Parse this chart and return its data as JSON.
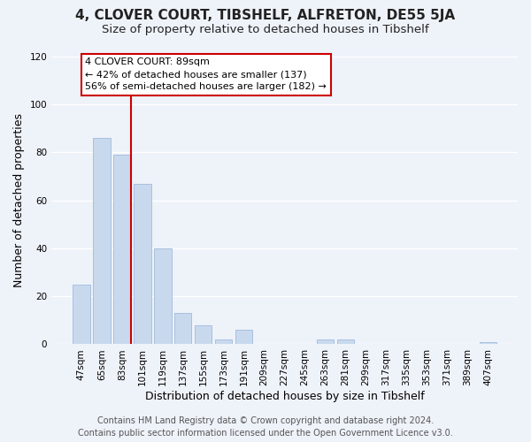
{
  "title": "4, CLOVER COURT, TIBSHELF, ALFRETON, DE55 5JA",
  "subtitle": "Size of property relative to detached houses in Tibshelf",
  "xlabel": "Distribution of detached houses by size in Tibshelf",
  "ylabel": "Number of detached properties",
  "bar_color": "#c8d9ee",
  "bar_edge_color": "#a8c0de",
  "categories": [
    "47sqm",
    "65sqm",
    "83sqm",
    "101sqm",
    "119sqm",
    "137sqm",
    "155sqm",
    "173sqm",
    "191sqm",
    "209sqm",
    "227sqm",
    "245sqm",
    "263sqm",
    "281sqm",
    "299sqm",
    "317sqm",
    "335sqm",
    "353sqm",
    "371sqm",
    "389sqm",
    "407sqm"
  ],
  "values": [
    25,
    86,
    79,
    67,
    40,
    13,
    8,
    2,
    6,
    0,
    0,
    0,
    2,
    2,
    0,
    0,
    0,
    0,
    0,
    0,
    1
  ],
  "ylim": [
    0,
    120
  ],
  "yticks": [
    0,
    20,
    40,
    60,
    80,
    100,
    120
  ],
  "vline_x_idx": 2,
  "vline_color": "#cc0000",
  "annotation_title": "4 CLOVER COURT: 89sqm",
  "annotation_line1": "← 42% of detached houses are smaller (137)",
  "annotation_line2": "56% of semi-detached houses are larger (182) →",
  "annotation_box_color": "#ffffff",
  "annotation_box_edge": "#cc0000",
  "footer_line1": "Contains HM Land Registry data © Crown copyright and database right 2024.",
  "footer_line2": "Contains public sector information licensed under the Open Government Licence v3.0.",
  "background_color": "#eef2f9",
  "grid_color": "#ffffff",
  "title_fontsize": 11,
  "subtitle_fontsize": 9.5,
  "axis_label_fontsize": 9,
  "tick_fontsize": 7.5,
  "footer_fontsize": 7
}
